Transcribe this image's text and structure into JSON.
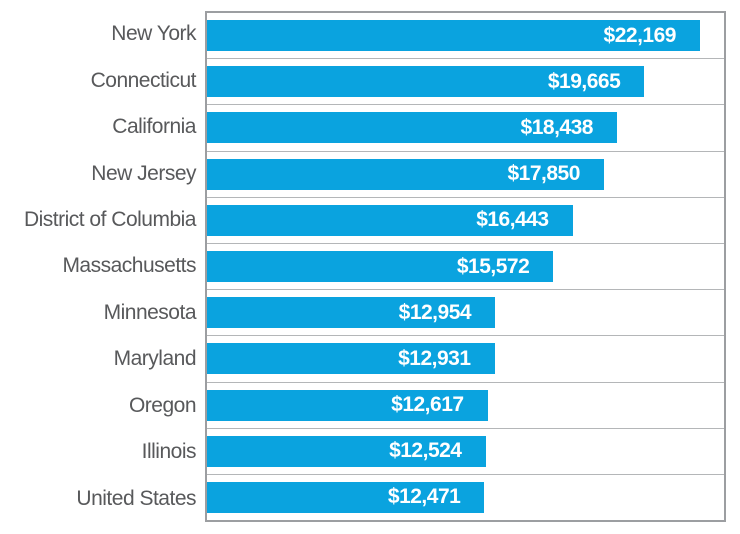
{
  "chart_data": {
    "type": "bar",
    "orientation": "horizontal",
    "title": "",
    "xlabel": "",
    "ylabel": "",
    "categories": [
      "New York",
      "Connecticut",
      "California",
      "New Jersey",
      "District of Columbia",
      "Massachusetts",
      "Minnesota",
      "Maryland",
      "Oregon",
      "Illinois",
      "United States"
    ],
    "values": [
      22169,
      19665,
      18438,
      17850,
      16443,
      15572,
      12954,
      12931,
      12617,
      12524,
      12471
    ],
    "value_labels": [
      "$22,169",
      "$19,665",
      "$18,438",
      "$17,850",
      "$16,443",
      "$15,572",
      "$12,954",
      "$12,931",
      "$12,617",
      "$12,524",
      "$12,471"
    ],
    "xlim": [
      0,
      23250
    ],
    "grid": "horizontal row separators, no axis ticks",
    "legend": "none",
    "colors": {
      "bar": "#0aa3df",
      "value_text": "#ffffff",
      "category_text": "#58595b",
      "plot_border": "#9c9ea1",
      "row_separator": "#b4b6b8",
      "background": "#ffffff"
    }
  }
}
